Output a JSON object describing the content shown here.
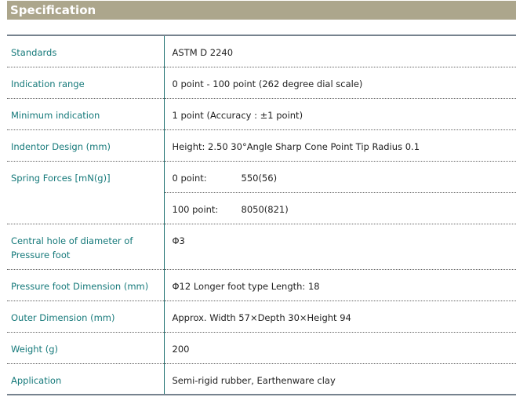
{
  "title": "Specification",
  "rows": [
    {
      "label": "Standards",
      "value": "ASTM D 2240"
    },
    {
      "label": "Indication range",
      "value": "0 point - 100 point (262 degree dial scale)"
    },
    {
      "label": "Minimum indication",
      "value": "1 point (Accuracy : ±1 point)"
    },
    {
      "label": "Indentor Design (mm)",
      "value": "Height: 2.50 30°Angle Sharp Cone Point Tip Radius 0.1"
    },
    {
      "label": "Spring Forces [mN(g)]",
      "sub": [
        {
          "k": "0 point:",
          "v": "550(56)"
        },
        {
          "k": "100 point:",
          "v": "8050(821)"
        }
      ]
    },
    {
      "label": "Central hole of diameter of Pressure foot",
      "value": "Φ3"
    },
    {
      "label": "Pressure foot Dimension (mm)",
      "value": "Φ12 Longer foot type Length: 18"
    },
    {
      "label": "Outer Dimension (mm)",
      "value": "Approx. Width 57×Depth 30×Height 94"
    },
    {
      "label": "Weight (g)",
      "value": "200"
    },
    {
      "label": "Application",
      "value": "Semi-rigid rubber, Earthenware clay"
    }
  ]
}
